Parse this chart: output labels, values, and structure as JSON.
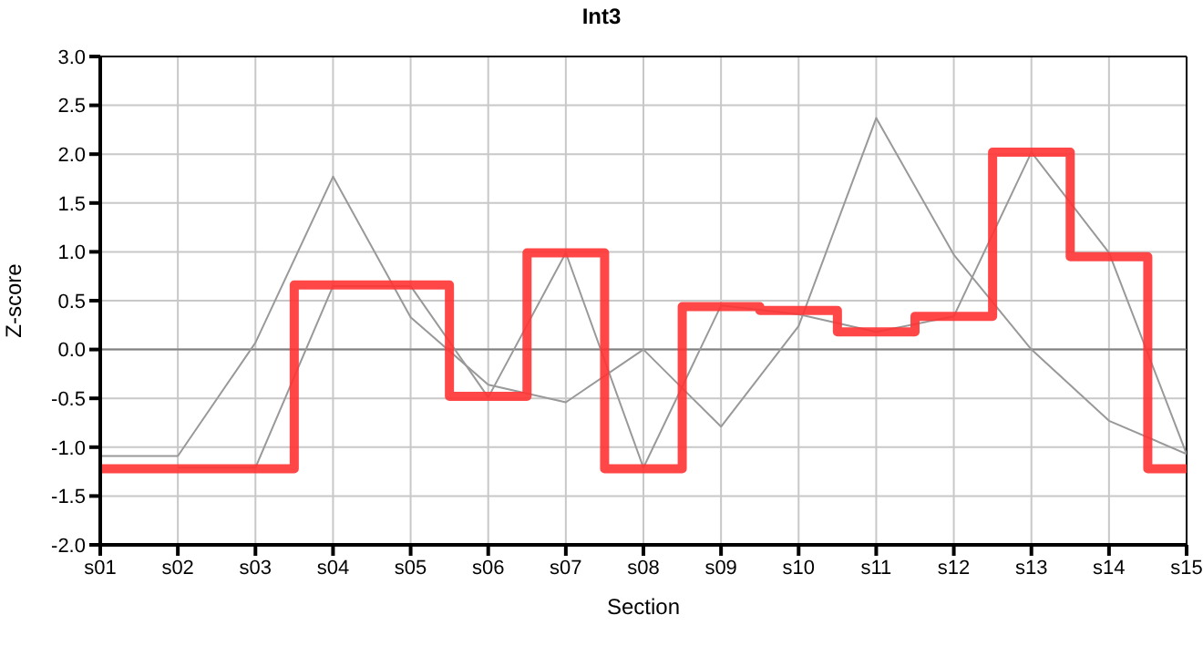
{
  "chart_data": {
    "type": "line",
    "title": "Int3",
    "xlabel": "Section",
    "ylabel": "Z-score",
    "categories": [
      "s01",
      "s02",
      "s03",
      "s04",
      "s05",
      "s06",
      "s07",
      "s08",
      "s09",
      "s10",
      "s11",
      "s12",
      "s13",
      "s14",
      "s15"
    ],
    "series": [
      {
        "color": "#999999",
        "values": [
          -1.09,
          -1.09,
          0.07,
          1.77,
          0.33,
          -0.36,
          -0.54,
          0.0,
          -0.79,
          0.24,
          2.37,
          0.97,
          0.0,
          -0.73,
          -1.07
        ]
      },
      {
        "color": "#999999",
        "values": [
          null,
          -1.21,
          -1.21,
          0.65,
          0.65,
          -0.49,
          0.99,
          -1.21,
          0.45,
          0.36,
          0.18,
          0.34,
          2.02,
          0.99,
          -1.07
        ]
      },
      {
        "type": "step",
        "color": "#ff3333",
        "values": [
          -1.22,
          -1.22,
          -1.22,
          0.66,
          0.66,
          -0.48,
          0.99,
          -1.22,
          0.44,
          0.4,
          0.18,
          0.34,
          2.02,
          0.95,
          -1.22
        ]
      }
    ],
    "ylim": [
      -2,
      3
    ],
    "yticks": [
      {
        "value": -2,
        "label": "-2.0"
      },
      {
        "value": -1.5,
        "label": "-1.5"
      },
      {
        "value": -1,
        "label": "-1.0"
      },
      {
        "value": -0.5,
        "label": "-0.5"
      },
      {
        "value": 0,
        "label": "0.0"
      },
      {
        "value": 0.5,
        "label": "0.5"
      },
      {
        "value": 1,
        "label": "1.0"
      },
      {
        "value": 1.5,
        "label": "1.5"
      },
      {
        "value": 2,
        "label": "2.0"
      },
      {
        "value": 2.5,
        "label": "2.5"
      },
      {
        "value": 3,
        "label": "3.0"
      }
    ],
    "ref_lines": [
      {
        "axis": "y",
        "value": 0,
        "color": "#808080"
      }
    ],
    "grid": true,
    "legend": false,
    "marker": "none",
    "line_style": "solid"
  }
}
